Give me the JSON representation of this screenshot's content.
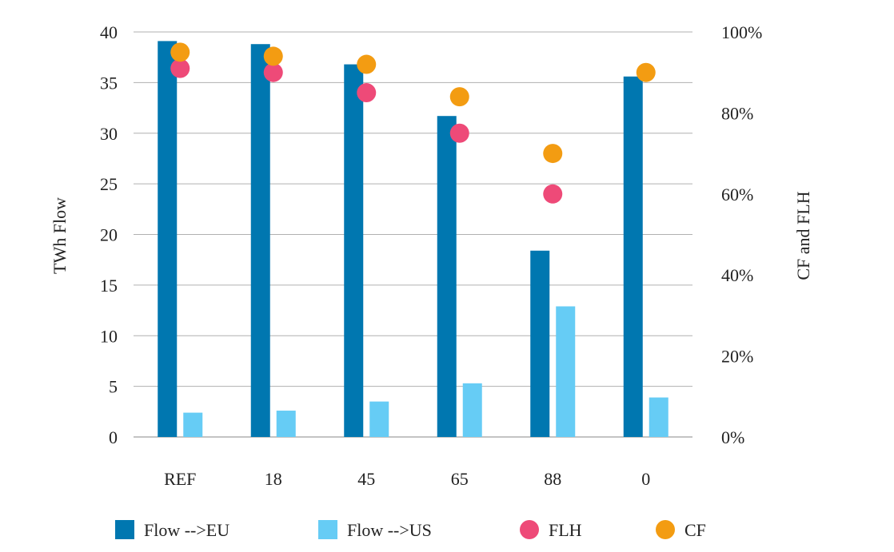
{
  "chart_data": {
    "type": "bar",
    "categories": [
      "REF",
      "18",
      "45",
      "65",
      "88",
      "0"
    ],
    "series": [
      {
        "name": "Flow -->EU",
        "kind": "bar",
        "axis": "left",
        "color": "#0077b0",
        "values": [
          39.1,
          38.8,
          36.8,
          31.7,
          18.4,
          35.6
        ]
      },
      {
        "name": "Flow -->US",
        "kind": "bar",
        "axis": "left",
        "color": "#66ccf5",
        "values": [
          2.4,
          2.6,
          3.5,
          5.3,
          12.9,
          3.9
        ]
      },
      {
        "name": "FLH",
        "kind": "marker",
        "axis": "right",
        "color": "#ee4a78",
        "values": [
          0.91,
          0.9,
          0.85,
          0.75,
          0.6,
          null
        ]
      },
      {
        "name": "CF",
        "kind": "marker",
        "axis": "right",
        "color": "#f39c12",
        "values": [
          0.95,
          0.94,
          0.92,
          0.84,
          0.7,
          0.9
        ]
      }
    ],
    "ylabel": "TWh Flow",
    "y2label": "CF and FLH",
    "ylim": [
      0,
      40
    ],
    "y2lim": [
      0,
      1
    ],
    "yticks": [
      "0",
      "5",
      "10",
      "15",
      "20",
      "25",
      "30",
      "35",
      "40"
    ],
    "y2ticks": [
      "0%",
      "20%",
      "40%",
      "60%",
      "80%",
      "100%"
    ],
    "grid": true,
    "legend_position": "bottom"
  }
}
